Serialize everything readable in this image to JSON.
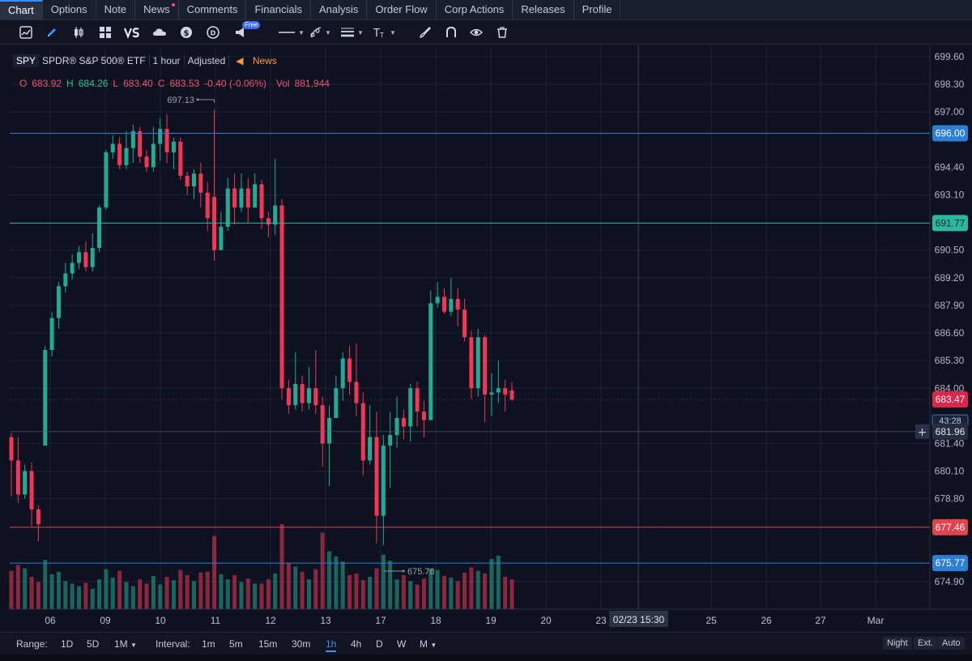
{
  "tabs": [
    {
      "label": "Chart",
      "active": true
    },
    {
      "label": "Options"
    },
    {
      "label": "Note"
    },
    {
      "label": "News",
      "dot": true
    },
    {
      "label": "Comments"
    },
    {
      "label": "Financials"
    },
    {
      "label": "Analysis"
    },
    {
      "label": "Order Flow"
    },
    {
      "label": "Corp Actions"
    },
    {
      "label": "Releases"
    },
    {
      "label": "Profile"
    }
  ],
  "toolbar": {
    "free_badge": "Free",
    "icons": [
      "chart-type-icon",
      "pen-icon",
      "candlestick-icon",
      "layout-grid-icon",
      "compare-vs-icon",
      "cloud-icon",
      "dollar-icon",
      "dividend-icon",
      "megaphone-icon",
      "line-style-icon",
      "drawing-tools-icon",
      "line-width-icon",
      "text-tool-icon",
      "brush-icon",
      "magnet-icon",
      "eye-icon",
      "trash-icon"
    ]
  },
  "legend": {
    "symbol": "SPY",
    "name": "SPDR® S&P 500® ETF",
    "interval": "1 hour",
    "adjusted": "Adjusted",
    "news": "News",
    "o_label": "O",
    "o_value": "683.92",
    "h_label": "H",
    "h_value": "684.26",
    "l_label": "L",
    "l_value": "683.40",
    "c_label": "C",
    "c_value": "683.53",
    "change": "-0.40 (-0.06%)",
    "vol_label": "Vol",
    "vol_value": "881,944"
  },
  "colors": {
    "up": "#22ab94",
    "down": "#f23658",
    "grid": "#1c2233",
    "background": "#0e1220",
    "line_blue": "#2d7fd6",
    "line_teal": "#2bb7a0",
    "line_red": "#e4434b"
  },
  "chart_data": {
    "type": "candlestick",
    "symbol": "SPY",
    "interval": "1 hour",
    "y_ticks": [
      "699.60",
      "698.30",
      "697.00",
      "694.40",
      "693.10",
      "690.50",
      "689.20",
      "687.90",
      "686.60",
      "685.30",
      "684.00",
      "681.40",
      "680.10",
      "678.80",
      "674.90"
    ],
    "ylim": [
      674.0,
      700.4
    ],
    "x_ticks": [
      "06",
      "09",
      "10",
      "11",
      "12",
      "13",
      "17",
      "18",
      "19",
      "20",
      "23",
      "25",
      "26",
      "27",
      "Mar"
    ],
    "crosshair_x_label": "02/23 15:30",
    "crosshair_y_label": "681.96",
    "countdown_label": "43:28",
    "high_marker": "697.13",
    "low_marker": "675.78",
    "price_lines": [
      {
        "value": "696.00",
        "color": "#2d7fd6"
      },
      {
        "value": "691.77",
        "color": "#2bb7a0"
      },
      {
        "value": "677.46",
        "color": "#e4434b"
      },
      {
        "value": "675.77",
        "color": "#2d7fd6"
      }
    ],
    "last_price": "683.47",
    "candles": [
      [
        681.7,
        680.6,
        681.9,
        678.9
      ],
      [
        680.6,
        679.0,
        681.7,
        678.6
      ],
      [
        679.0,
        680.1,
        680.4,
        678.8
      ],
      [
        680.1,
        678.3,
        680.5,
        677.5
      ],
      [
        678.3,
        677.6,
        678.5,
        676.8
      ],
      [
        681.3,
        685.8,
        686.0,
        681.3
      ],
      [
        685.8,
        687.3,
        687.6,
        685.5
      ],
      [
        687.3,
        688.8,
        689.0,
        686.8
      ],
      [
        688.8,
        689.4,
        689.9,
        688.5
      ],
      [
        689.4,
        689.9,
        690.3,
        689.1
      ],
      [
        689.9,
        690.4,
        690.7,
        689.6
      ],
      [
        690.4,
        689.7,
        690.9,
        689.5
      ],
      [
        689.7,
        690.6,
        691.3,
        689.5
      ],
      [
        690.6,
        692.5,
        692.6,
        690.4
      ],
      [
        692.5,
        695.1,
        695.2,
        692.4
      ],
      [
        695.1,
        695.5,
        695.9,
        694.8
      ],
      [
        695.5,
        694.5,
        695.8,
        694.3
      ],
      [
        694.5,
        695.3,
        696.1,
        694.3
      ],
      [
        695.3,
        696.1,
        696.4,
        694.6
      ],
      [
        696.1,
        694.9,
        696.3,
        694.6
      ],
      [
        694.9,
        694.4,
        695.2,
        694.2
      ],
      [
        694.4,
        695.5,
        696.3,
        694.2
      ],
      [
        695.5,
        696.2,
        696.7,
        694.7
      ],
      [
        696.2,
        695.1,
        696.9,
        694.6
      ],
      [
        695.1,
        695.6,
        695.8,
        694.3
      ],
      [
        695.6,
        694.0,
        695.8,
        693.8
      ],
      [
        694.0,
        693.5,
        694.2,
        693.1
      ],
      [
        693.5,
        694.1,
        694.3,
        692.9
      ],
      [
        694.1,
        693.2,
        694.6,
        692.5
      ],
      [
        693.2,
        692.0,
        693.7,
        691.4
      ],
      [
        693.0,
        690.5,
        697.1,
        690.0
      ],
      [
        690.5,
        691.6,
        692.3,
        690.5
      ],
      [
        691.6,
        693.4,
        693.9,
        691.4
      ],
      [
        693.4,
        692.5,
        694.1,
        691.7
      ],
      [
        692.5,
        693.4,
        694.1,
        692.3
      ],
      [
        693.4,
        692.5,
        693.9,
        691.8
      ],
      [
        692.5,
        693.6,
        694.1,
        692.5
      ],
      [
        693.6,
        692.0,
        693.8,
        691.5
      ],
      [
        692.0,
        691.7,
        692.3,
        691.1
      ],
      [
        691.7,
        692.6,
        694.8,
        691.2
      ],
      [
        692.6,
        684.0,
        692.9,
        683.5
      ],
      [
        684.0,
        683.2,
        684.4,
        682.8
      ],
      [
        683.2,
        684.2,
        685.7,
        683.0
      ],
      [
        684.2,
        683.3,
        684.6,
        682.9
      ],
      [
        683.3,
        684.0,
        685.0,
        683.0
      ],
      [
        684.0,
        683.2,
        685.8,
        682.8
      ],
      [
        683.2,
        681.4,
        683.6,
        680.3
      ],
      [
        681.4,
        682.6,
        683.2,
        679.4
      ],
      [
        682.6,
        684.0,
        684.6,
        682.6
      ],
      [
        684.0,
        685.4,
        685.7,
        683.4
      ],
      [
        685.4,
        684.3,
        686.0,
        683.7
      ],
      [
        684.3,
        683.3,
        686.1,
        682.7
      ],
      [
        683.3,
        680.6,
        683.8,
        679.9
      ],
      [
        680.6,
        681.7,
        683.2,
        680.4
      ],
      [
        681.7,
        678.0,
        682.9,
        676.7
      ],
      [
        678.0,
        681.3,
        681.8,
        676.6
      ],
      [
        681.3,
        681.8,
        682.9,
        679.3
      ],
      [
        681.8,
        682.6,
        683.6,
        681.2
      ],
      [
        682.6,
        682.2,
        683.0,
        681.6
      ],
      [
        682.2,
        684.0,
        684.2,
        681.5
      ],
      [
        684.0,
        682.9,
        684.3,
        682.2
      ],
      [
        682.9,
        682.5,
        683.4,
        681.7
      ],
      [
        682.5,
        688.0,
        688.6,
        683.9
      ],
      [
        688.0,
        688.3,
        689.0,
        687.8
      ],
      [
        688.3,
        687.6,
        688.7,
        687.5
      ],
      [
        687.6,
        688.2,
        689.2,
        687.4
      ],
      [
        688.2,
        687.7,
        688.7,
        686.9
      ],
      [
        687.7,
        686.4,
        688.2,
        686.2
      ],
      [
        686.4,
        684.0,
        686.7,
        683.5
      ],
      [
        684.0,
        686.4,
        686.8,
        683.6
      ],
      [
        686.4,
        683.7,
        686.5,
        682.4
      ],
      [
        683.7,
        683.8,
        684.7,
        682.7
      ],
      [
        683.8,
        684.0,
        685.3,
        683.3
      ],
      [
        684.0,
        683.7,
        684.4,
        682.9
      ],
      [
        683.9,
        683.47,
        684.3,
        683.4
      ]
    ],
    "volume": [
      45,
      52,
      48,
      38,
      32,
      58,
      41,
      44,
      33,
      30,
      27,
      31,
      24,
      35,
      47,
      37,
      45,
      32,
      27,
      35,
      30,
      39,
      29,
      38,
      34,
      46,
      40,
      33,
      43,
      44,
      86,
      41,
      35,
      40,
      32,
      36,
      30,
      30,
      35,
      42,
      100,
      54,
      50,
      44,
      35,
      47,
      90,
      68,
      62,
      56,
      40,
      42,
      34,
      38,
      48,
      64,
      57,
      35,
      40,
      33,
      29,
      36,
      47,
      46,
      39,
      37,
      33,
      43,
      49,
      45,
      42,
      59,
      63,
      38,
      35
    ]
  },
  "range_bar": {
    "range_label": "Range:",
    "ranges": [
      "1D",
      "5D",
      "1M"
    ],
    "interval_label": "Interval:",
    "intervals": [
      "1m",
      "5m",
      "15m",
      "30m",
      "1h",
      "4h",
      "D",
      "W",
      "M"
    ],
    "active_interval": "1h",
    "toggles": [
      "Night",
      "Ext.",
      "Auto"
    ]
  }
}
